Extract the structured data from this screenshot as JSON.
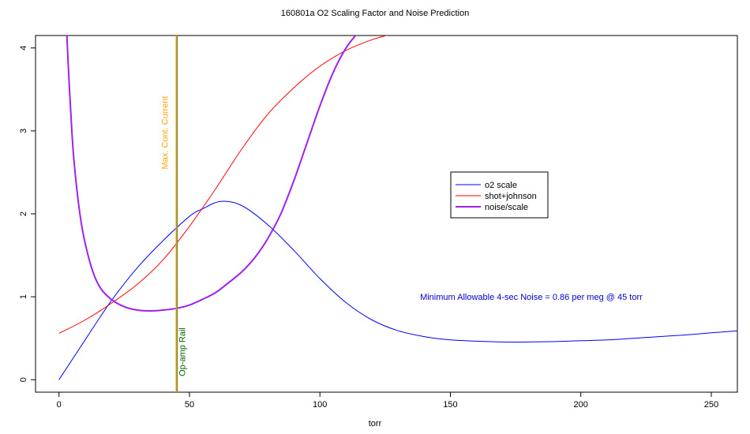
{
  "chart_data": {
    "type": "line",
    "title": "160801a  O2 Scaling Factor and Noise Prediction",
    "xlabel": "torr",
    "ylabel": "",
    "xlim": [
      -9,
      260
    ],
    "ylim": [
      -0.15,
      4.15
    ],
    "xticks": [
      0,
      50,
      100,
      150,
      200,
      250
    ],
    "yticks": [
      0,
      1,
      2,
      3,
      4
    ],
    "grid": false,
    "legend_position": "right-middle",
    "series": [
      {
        "name": "o2 scale",
        "color": "#0000ff",
        "width": 1,
        "x": [
          0,
          10,
          20,
          30,
          40,
          50,
          55,
          62,
          70,
          80,
          90,
          100,
          110,
          120,
          130,
          140,
          150,
          160,
          170,
          180,
          190,
          200,
          210,
          220,
          230,
          240,
          250,
          260
        ],
        "y": [
          0.0,
          0.48,
          0.95,
          1.35,
          1.68,
          1.97,
          2.06,
          2.15,
          2.1,
          1.87,
          1.56,
          1.22,
          0.93,
          0.72,
          0.59,
          0.52,
          0.48,
          0.465,
          0.455,
          0.455,
          0.46,
          0.47,
          0.48,
          0.5,
          0.52,
          0.54,
          0.565,
          0.59
        ]
      },
      {
        "name": "shot+johnson",
        "color": "#ff0000",
        "width": 1,
        "x": [
          0,
          10,
          20,
          30,
          40,
          50,
          60,
          70,
          80,
          90,
          100,
          110,
          120,
          128
        ],
        "y": [
          0.56,
          0.72,
          0.92,
          1.15,
          1.45,
          1.85,
          2.3,
          2.78,
          3.2,
          3.52,
          3.78,
          3.97,
          4.1,
          4.17
        ]
      },
      {
        "name": "noise/scale",
        "color": "#a020f0",
        "width": 2,
        "x": [
          3,
          4,
          5,
          6,
          8,
          10,
          13,
          16,
          20,
          25,
          30,
          35,
          40,
          45,
          50,
          55,
          60,
          65,
          70,
          75,
          80,
          85,
          90,
          95,
          100,
          105,
          110,
          115
        ],
        "y": [
          4.15,
          3.5,
          2.95,
          2.55,
          2.0,
          1.65,
          1.3,
          1.1,
          0.97,
          0.88,
          0.84,
          0.83,
          0.84,
          0.86,
          0.9,
          0.97,
          1.05,
          1.17,
          1.3,
          1.47,
          1.7,
          2.0,
          2.4,
          2.85,
          3.3,
          3.7,
          4.0,
          4.2
        ]
      }
    ],
    "vlines": [
      {
        "x": 45,
        "color": "#ffa500",
        "width": 2,
        "label": "Max. Cont. Current"
      },
      {
        "x": 45.3,
        "color": "#708a40",
        "width": 1.5,
        "label": "Op-amp Rail"
      }
    ],
    "annotations": [
      {
        "text": "Minimum Allowable 4-sec Noise = 0.86  per meg @  45  torr",
        "x": 181,
        "y": 1.0,
        "color": "#0000cd"
      }
    ]
  }
}
